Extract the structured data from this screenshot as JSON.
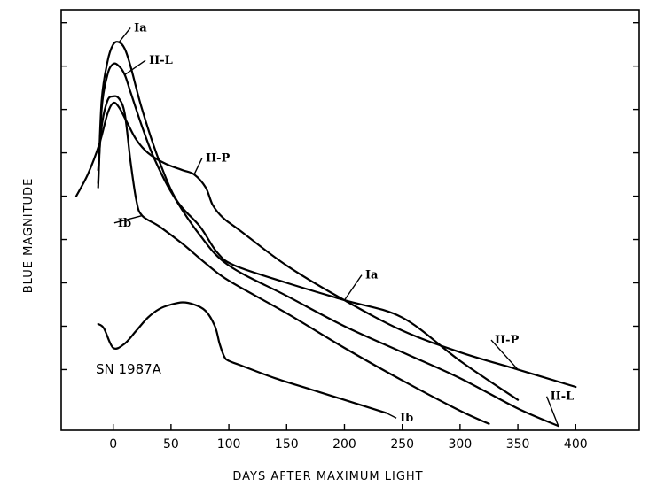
{
  "chart_data": {
    "type": "line",
    "title": "",
    "xlabel": "DAYS AFTER MAXIMUM LIGHT",
    "ylabel": "BLUE MAGNITUDE",
    "xlim": [
      -45,
      455
    ],
    "ylim": [
      -0.4,
      9.3
    ],
    "x_ticks": [
      0,
      50,
      100,
      150,
      200,
      250,
      300,
      350,
      400
    ],
    "x_tick_labels": [
      "0",
      "50",
      "100",
      "150",
      "200",
      "250",
      "300",
      "350",
      "400"
    ],
    "y_ticks": [
      1,
      2,
      3,
      4,
      5,
      6,
      7,
      8,
      9
    ],
    "y_tick_labels": [
      "",
      "",
      "",
      "",
      "",
      "",
      "",
      "",
      ""
    ],
    "annotation": "SN 1987A",
    "series": [
      {
        "name": "Ia",
        "x": [
          -13,
          -10,
          -5,
          0,
          5,
          10,
          15,
          25,
          40,
          55,
          75,
          90,
          105,
          150,
          200,
          250,
          300,
          350
        ],
        "y": [
          5.3,
          7.2,
          8.1,
          8.5,
          8.55,
          8.4,
          8.0,
          7.0,
          5.8,
          4.9,
          4.3,
          3.7,
          3.4,
          3.0,
          2.6,
          2.2,
          1.2,
          0.3
        ],
        "labels": [
          {
            "text": "Ia",
            "x": 18,
            "y": 8.8
          },
          {
            "text": "Ia",
            "x": 218,
            "y": 3.1
          }
        ]
      },
      {
        "name": "II-L",
        "x": [
          -13,
          -10,
          -5,
          0,
          5,
          10,
          15,
          25,
          35,
          50,
          75,
          100,
          150,
          200,
          250,
          300,
          350,
          385
        ],
        "y": [
          5.2,
          7.0,
          7.8,
          8.05,
          8.0,
          7.8,
          7.4,
          6.6,
          5.9,
          5.1,
          4.1,
          3.4,
          2.7,
          2.0,
          1.4,
          0.8,
          0.1,
          -0.3
        ],
        "labels": [
          {
            "text": "II-L",
            "x": 31,
            "y": 8.05
          },
          {
            "text": "II-L",
            "x": 378,
            "y": 0.3
          }
        ]
      },
      {
        "name": "II-P",
        "x": [
          -32,
          -22,
          -12,
          -5,
          0,
          5,
          12,
          20,
          30,
          45,
          60,
          70,
          80,
          86,
          95,
          110,
          150,
          200,
          250,
          300,
          350,
          400
        ],
        "y": [
          5.0,
          5.5,
          6.2,
          6.9,
          7.15,
          7.05,
          6.7,
          6.3,
          6.0,
          5.75,
          5.6,
          5.5,
          5.2,
          4.8,
          4.5,
          4.2,
          3.4,
          2.6,
          1.9,
          1.4,
          1.0,
          0.6
        ],
        "labels": [
          {
            "text": "II-P",
            "x": 80,
            "y": 5.8
          },
          {
            "text": "II-P",
            "x": 330,
            "y": 1.6
          }
        ]
      },
      {
        "name": "Ib",
        "x": [
          -13,
          -10,
          -5,
          0,
          5,
          10,
          15,
          20,
          25,
          40,
          60,
          80,
          100,
          150,
          200,
          250,
          300,
          325
        ],
        "y": [
          5.6,
          6.6,
          7.2,
          7.3,
          7.25,
          6.9,
          5.8,
          4.9,
          4.55,
          4.3,
          3.9,
          3.45,
          3.05,
          2.3,
          1.5,
          0.75,
          0.05,
          -0.25
        ],
        "labels": [
          {
            "text": "Ib",
            "x": 4,
            "y": 4.3
          }
        ]
      },
      {
        "name": "SN 1987A",
        "x": [
          -13,
          -8,
          0,
          10,
          20,
          30,
          40,
          50,
          60,
          70,
          80,
          88,
          92,
          96,
          100,
          110,
          140,
          170,
          200,
          236
        ],
        "y": [
          2.05,
          1.95,
          1.5,
          1.6,
          1.9,
          2.2,
          2.4,
          2.5,
          2.55,
          2.5,
          2.35,
          2.0,
          1.6,
          1.3,
          1.2,
          1.1,
          0.8,
          0.55,
          0.3,
          0.0
        ],
        "labels": [
          {
            "text": "Ib",
            "x": 248,
            "y": -0.2
          }
        ]
      }
    ]
  }
}
